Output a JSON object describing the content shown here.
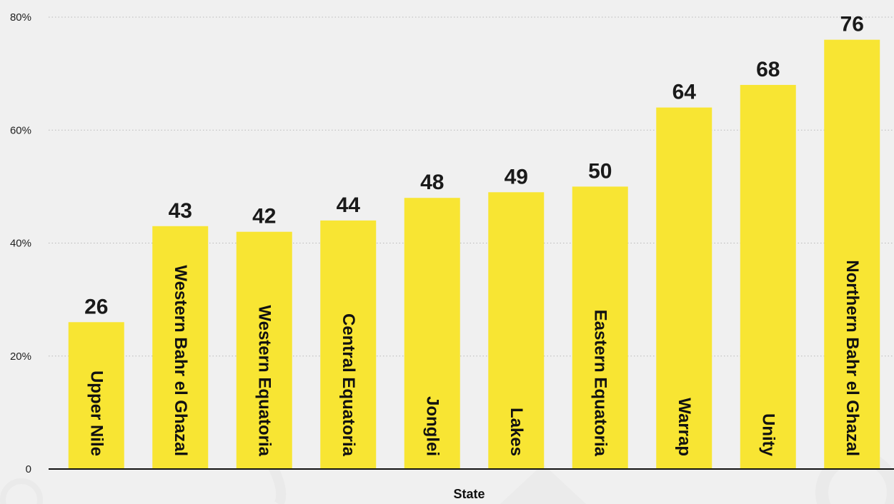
{
  "chart_data": {
    "type": "bar",
    "xlabel": "State",
    "ylabel": "",
    "ylim": [
      0,
      80
    ],
    "y_ticks": [
      {
        "value": 0,
        "label": "0"
      },
      {
        "value": 20,
        "label": "20%"
      },
      {
        "value": 40,
        "label": "40%"
      },
      {
        "value": 60,
        "label": "60%"
      },
      {
        "value": 80,
        "label": "80%"
      }
    ],
    "grid": true,
    "bar_color": "#f8e533",
    "categories": [
      "Upper  Nile",
      "Western Bahr el Ghazal",
      "Western Equatoria",
      "Central Equatoria",
      "Jonglei",
      "Lakes",
      "Eastern Equatoria",
      "Warrap",
      "Unity",
      "Northern Bahr el Ghazal"
    ],
    "values": [
      26,
      43,
      42,
      44,
      48,
      49,
      50,
      64,
      68,
      76
    ],
    "value_labels": [
      "26",
      "43",
      "42",
      "44",
      "48",
      "49",
      "50",
      "64",
      "68",
      "76"
    ]
  }
}
